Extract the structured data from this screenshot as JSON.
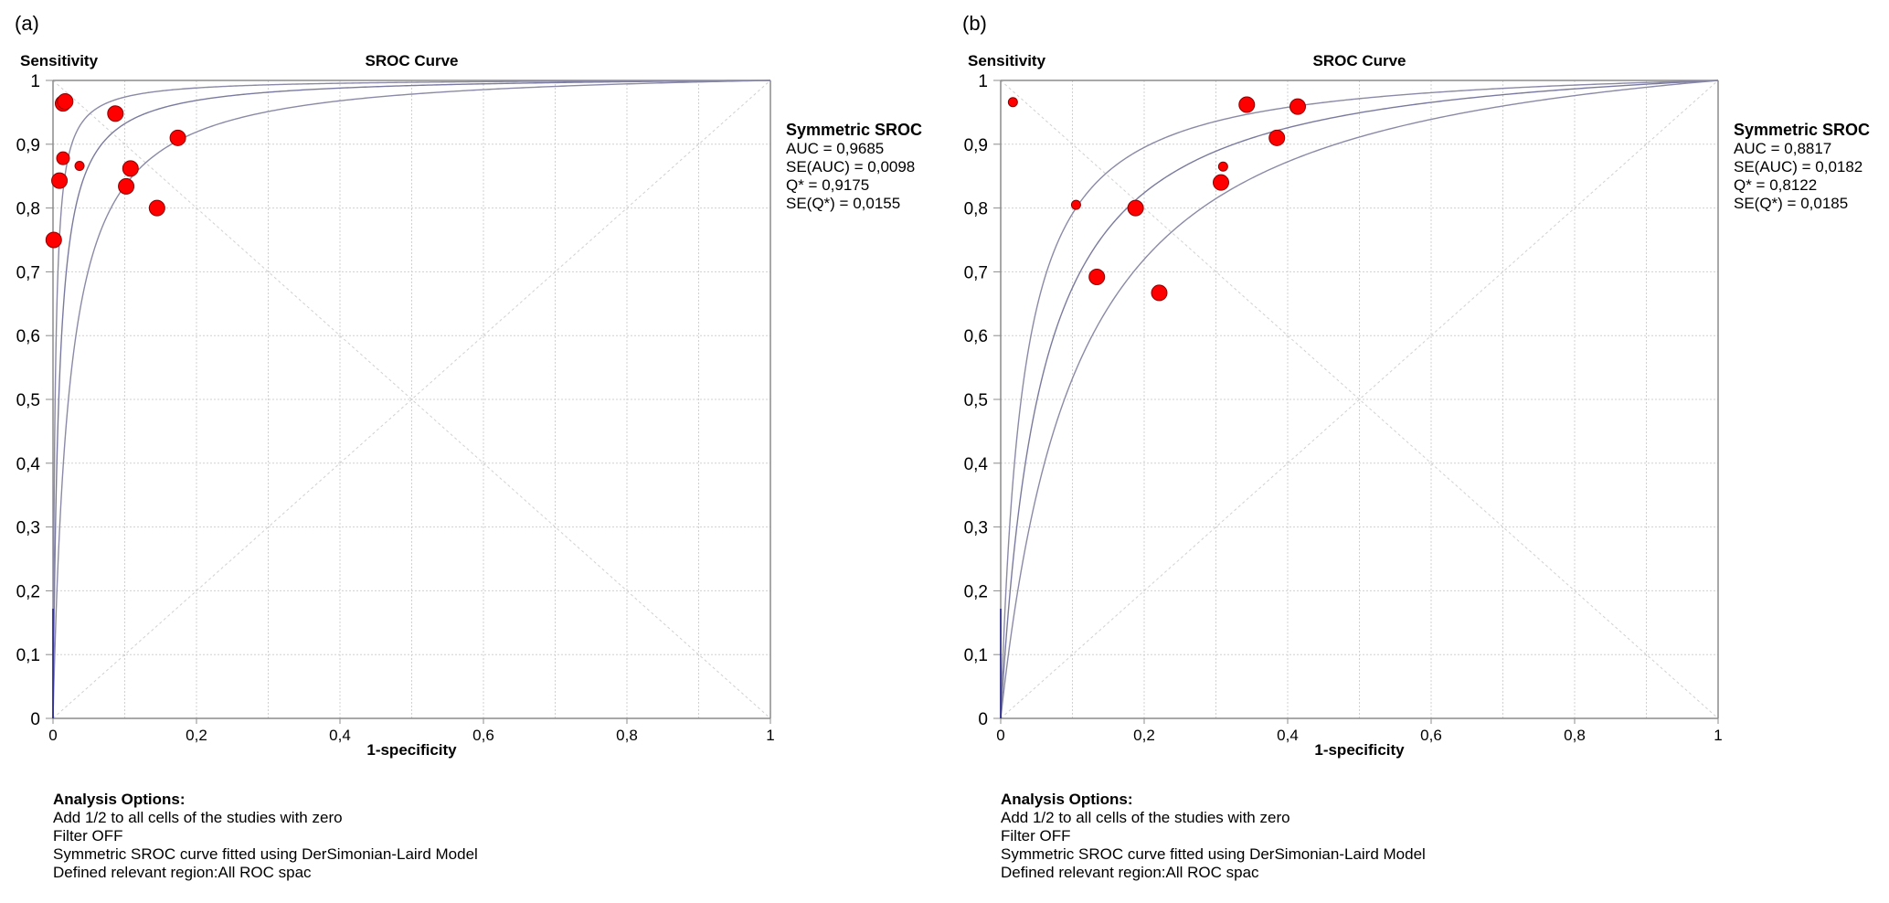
{
  "chart_data": [
    {
      "type": "scatter",
      "panel_label": "(a)",
      "title": "SROC Curve",
      "ylabel": "Sensitivity",
      "xlabel": "1-specificity",
      "xlim": [
        0,
        1
      ],
      "ylim": [
        0,
        1
      ],
      "x_ticks": [
        "0",
        "0,2",
        "0,4",
        "0,6",
        "0,8",
        "1"
      ],
      "y_ticks": [
        "0",
        "0,1",
        "0,2",
        "0,3",
        "0,4",
        "0,5",
        "0,6",
        "0,7",
        "0,8",
        "0,9",
        "1"
      ],
      "grid": true,
      "legend": {
        "title": "Symmetric SROC",
        "lines": [
          "AUC = 0,9685",
          "SE(AUC) = 0,0098",
          "Q* = 0,9175",
          "SE(Q*) = 0,0155"
        ]
      },
      "q_star": 0.9175,
      "curve_logit_offsets": [
        -1.0,
        0,
        1.0
      ],
      "points": [
        {
          "x": 0.014,
          "y": 0.964,
          "size": "large"
        },
        {
          "x": 0.017,
          "y": 0.967,
          "size": "large"
        },
        {
          "x": 0.087,
          "y": 0.948,
          "size": "large"
        },
        {
          "x": 0.174,
          "y": 0.91,
          "size": "large"
        },
        {
          "x": 0.014,
          "y": 0.878,
          "size": "medium"
        },
        {
          "x": 0.037,
          "y": 0.866,
          "size": "small"
        },
        {
          "x": 0.108,
          "y": 0.862,
          "size": "large"
        },
        {
          "x": 0.009,
          "y": 0.843,
          "size": "large"
        },
        {
          "x": 0.102,
          "y": 0.834,
          "size": "large"
        },
        {
          "x": 0.145,
          "y": 0.8,
          "size": "large"
        },
        {
          "x": 0.001,
          "y": 0.75,
          "size": "large"
        }
      ],
      "analysis_options": {
        "title": "Analysis Options:",
        "lines": [
          "Add 1/2 to all cells of the studies with zero",
          "Filter OFF",
          "Symmetric SROC curve fitted using DerSimonian-Laird Model",
          "Defined relevant region:All ROC spac"
        ]
      }
    },
    {
      "type": "scatter",
      "panel_label": "(b)",
      "title": "SROC Curve",
      "ylabel": "Sensitivity",
      "xlabel": "1-specificity",
      "xlim": [
        0,
        1
      ],
      "ylim": [
        0,
        1
      ],
      "x_ticks": [
        "0",
        "0,2",
        "0,4",
        "0,6",
        "0,8",
        "1"
      ],
      "y_ticks": [
        "0",
        "0,1",
        "0,2",
        "0,3",
        "0,4",
        "0,5",
        "0,6",
        "0,7",
        "0,8",
        "0,9",
        "1"
      ],
      "grid": true,
      "legend": {
        "title": "Symmetric SROC",
        "lines": [
          "AUC = 0,8817",
          "SE(AUC) = 0,0182",
          "Q* = 0,8122",
          "SE(Q*) = 0,0185"
        ]
      },
      "q_star": 0.8122,
      "curve_logit_offsets": [
        -0.6,
        0,
        0.6
      ],
      "points": [
        {
          "x": 0.017,
          "y": 0.966,
          "size": "small"
        },
        {
          "x": 0.105,
          "y": 0.805,
          "size": "small"
        },
        {
          "x": 0.188,
          "y": 0.8,
          "size": "large"
        },
        {
          "x": 0.134,
          "y": 0.692,
          "size": "large"
        },
        {
          "x": 0.221,
          "y": 0.667,
          "size": "large"
        },
        {
          "x": 0.307,
          "y": 0.84,
          "size": "large"
        },
        {
          "x": 0.31,
          "y": 0.865,
          "size": "small"
        },
        {
          "x": 0.343,
          "y": 0.962,
          "size": "large"
        },
        {
          "x": 0.385,
          "y": 0.91,
          "size": "large"
        },
        {
          "x": 0.414,
          "y": 0.959,
          "size": "large"
        }
      ],
      "analysis_options": {
        "title": "Analysis Options:",
        "lines": [
          "Add 1/2 to all cells of the studies with zero",
          "Filter OFF",
          "Symmetric SROC curve fitted using DerSimonian-Laird Model",
          "Defined relevant region:All ROC spac"
        ]
      }
    }
  ],
  "colors": {
    "point": "#ff0000",
    "curve": "#8a8aa8",
    "axis": "#8c8c8c",
    "grid": "#d0d0d0"
  }
}
